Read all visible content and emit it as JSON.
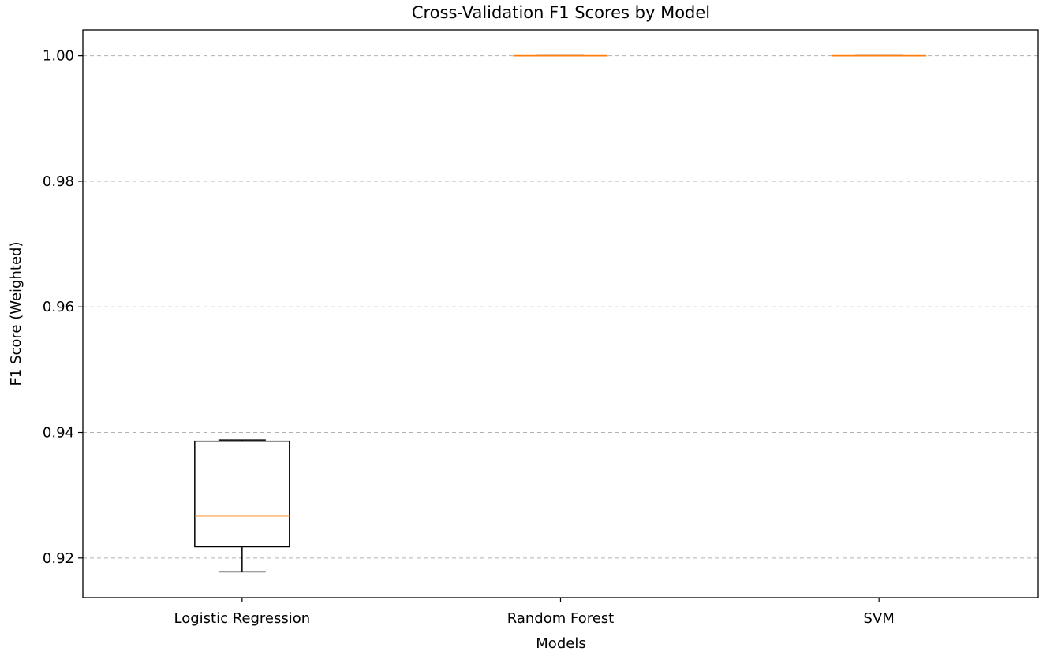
{
  "chart_data": {
    "type": "box",
    "title": "Cross-Validation F1 Scores by Model",
    "xlabel": "Models",
    "ylabel": "F1 Score (Weighted)",
    "ylim": [
      0.9137,
      1.0041
    ],
    "yticks": [
      0.92,
      0.94,
      0.96,
      0.98,
      1.0
    ],
    "ytick_labels": [
      "0.92",
      "0.94",
      "0.96",
      "0.98",
      "1.00"
    ],
    "grid": "y-dashed",
    "categories": [
      "Logistic Regression",
      "Random Forest",
      "SVM"
    ],
    "boxes": [
      {
        "whisker_low": 0.9178,
        "q1": 0.9218,
        "median": 0.9267,
        "q3": 0.9386,
        "whisker_high": 0.9388
      },
      {
        "whisker_low": 1.0,
        "q1": 1.0,
        "median": 1.0,
        "q3": 1.0,
        "whisker_high": 1.0
      },
      {
        "whisker_low": 1.0,
        "q1": 1.0,
        "median": 1.0,
        "q3": 1.0,
        "whisker_high": 1.0
      }
    ],
    "colors": {
      "box": "#000000",
      "median": "#ff7f0e",
      "grid": "#b0b0b0"
    }
  }
}
